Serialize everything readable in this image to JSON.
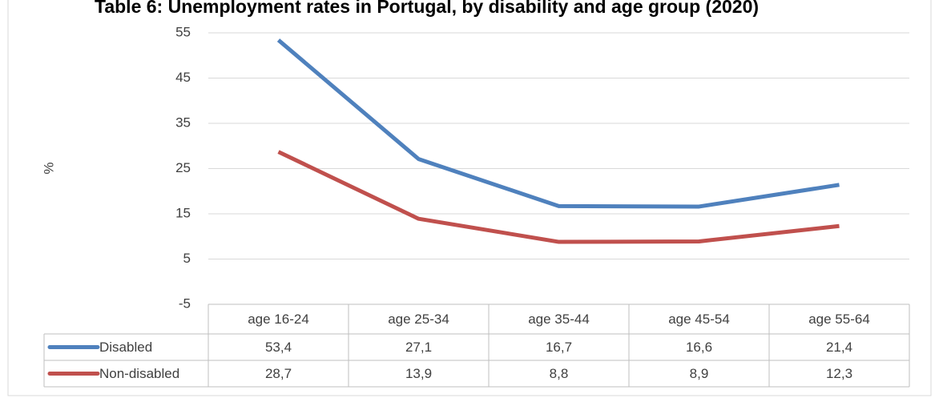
{
  "chart_data": {
    "type": "line",
    "title": "Table 6: Unemployment rates in Portugal, by disability and age group (2020)",
    "y_label": "%",
    "categories": [
      "age 16-24",
      "age 25-34",
      "age 35-44",
      "age 45-54",
      "age 55-64"
    ],
    "series": [
      {
        "name": "Disabled",
        "color": "#4f81bd",
        "values": [
          53.4,
          27.1,
          16.7,
          16.6,
          21.4
        ],
        "value_labels": [
          "53,4",
          "27,1",
          "16,7",
          "16,6",
          "21,4"
        ]
      },
      {
        "name": "Non-disabled",
        "color": "#c0504d",
        "values": [
          28.7,
          13.9,
          8.8,
          8.9,
          12.3
        ],
        "value_labels": [
          "28,7",
          "13,9",
          "8,8",
          "8,9",
          "12,3"
        ]
      }
    ],
    "ylim": [
      -5,
      55
    ],
    "yticks": [
      -5,
      5,
      15,
      25,
      35,
      45,
      55
    ],
    "grid": true
  }
}
